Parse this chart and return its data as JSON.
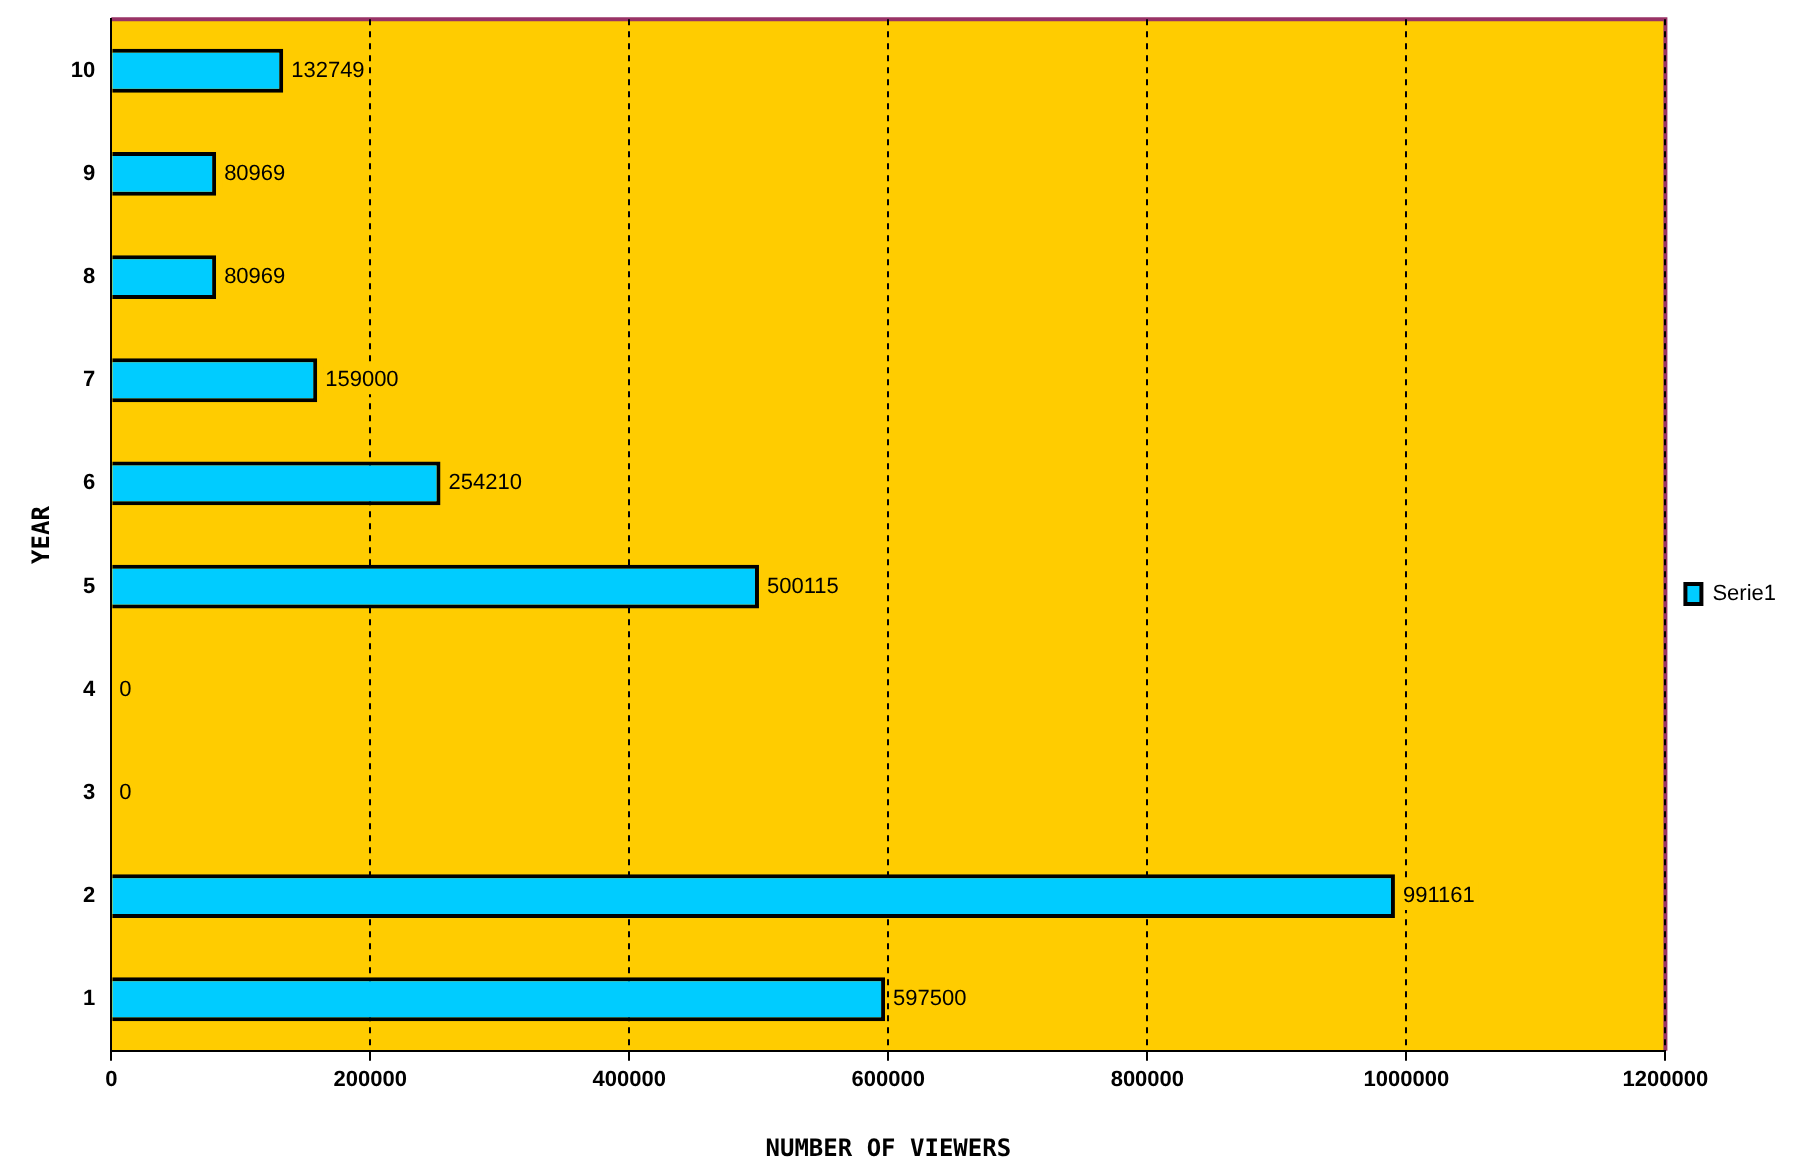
{
  "chart_data": {
    "type": "bar",
    "orientation": "horizontal",
    "xlabel": "NUMBER OF VIEWERS",
    "ylabel": "YEAR",
    "categories": [
      "10",
      "9",
      "8",
      "7",
      "6",
      "5",
      "4",
      "3",
      "2",
      "1"
    ],
    "series": [
      {
        "name": "Serie1",
        "color": "#00ccff",
        "values": [
          132749,
          80969,
          80969,
          159000,
          254210,
          500115,
          0,
          0,
          991161,
          597500
        ]
      }
    ],
    "xlim": [
      0,
      1200000
    ],
    "xticks": [
      0,
      200000,
      400000,
      600000,
      800000,
      1000000,
      1200000
    ],
    "grid": "x",
    "legend": "right",
    "data_labels": true
  }
}
